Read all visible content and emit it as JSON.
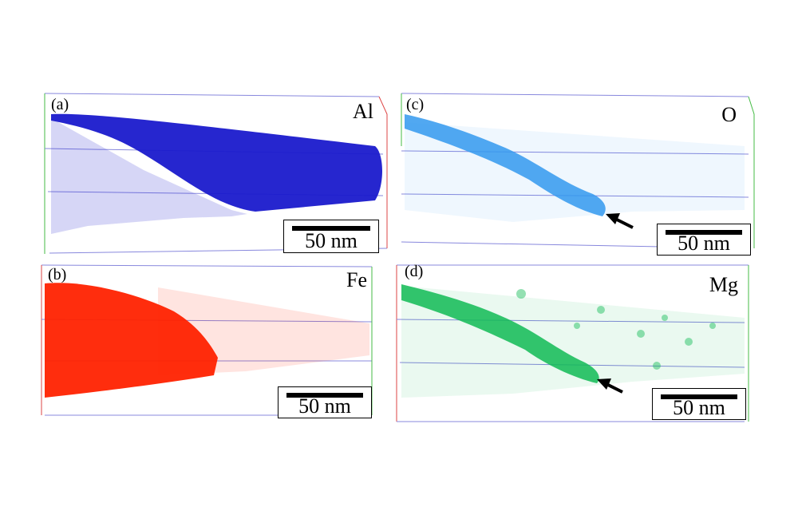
{
  "panels": [
    {
      "id": "a",
      "panel_label": "(a)",
      "element": "Al",
      "color": "#1a1acc",
      "scale_label": "50 nm",
      "arrow": false
    },
    {
      "id": "b",
      "panel_label": "(b)",
      "element": "Fe",
      "color": "#ff2200",
      "scale_label": "50 nm",
      "arrow": false
    },
    {
      "id": "c",
      "panel_label": "(c)",
      "element": "O",
      "color": "#3399ee",
      "scale_label": "50 nm",
      "arrow": true
    },
    {
      "id": "d",
      "panel_label": "(d)",
      "element": "Mg",
      "color": "#11bb55",
      "scale_label": "50 nm",
      "arrow": true
    }
  ],
  "box_colors": {
    "edge": "#8888dd",
    "axis_red": "#dd4444",
    "axis_green": "#44bb44"
  }
}
